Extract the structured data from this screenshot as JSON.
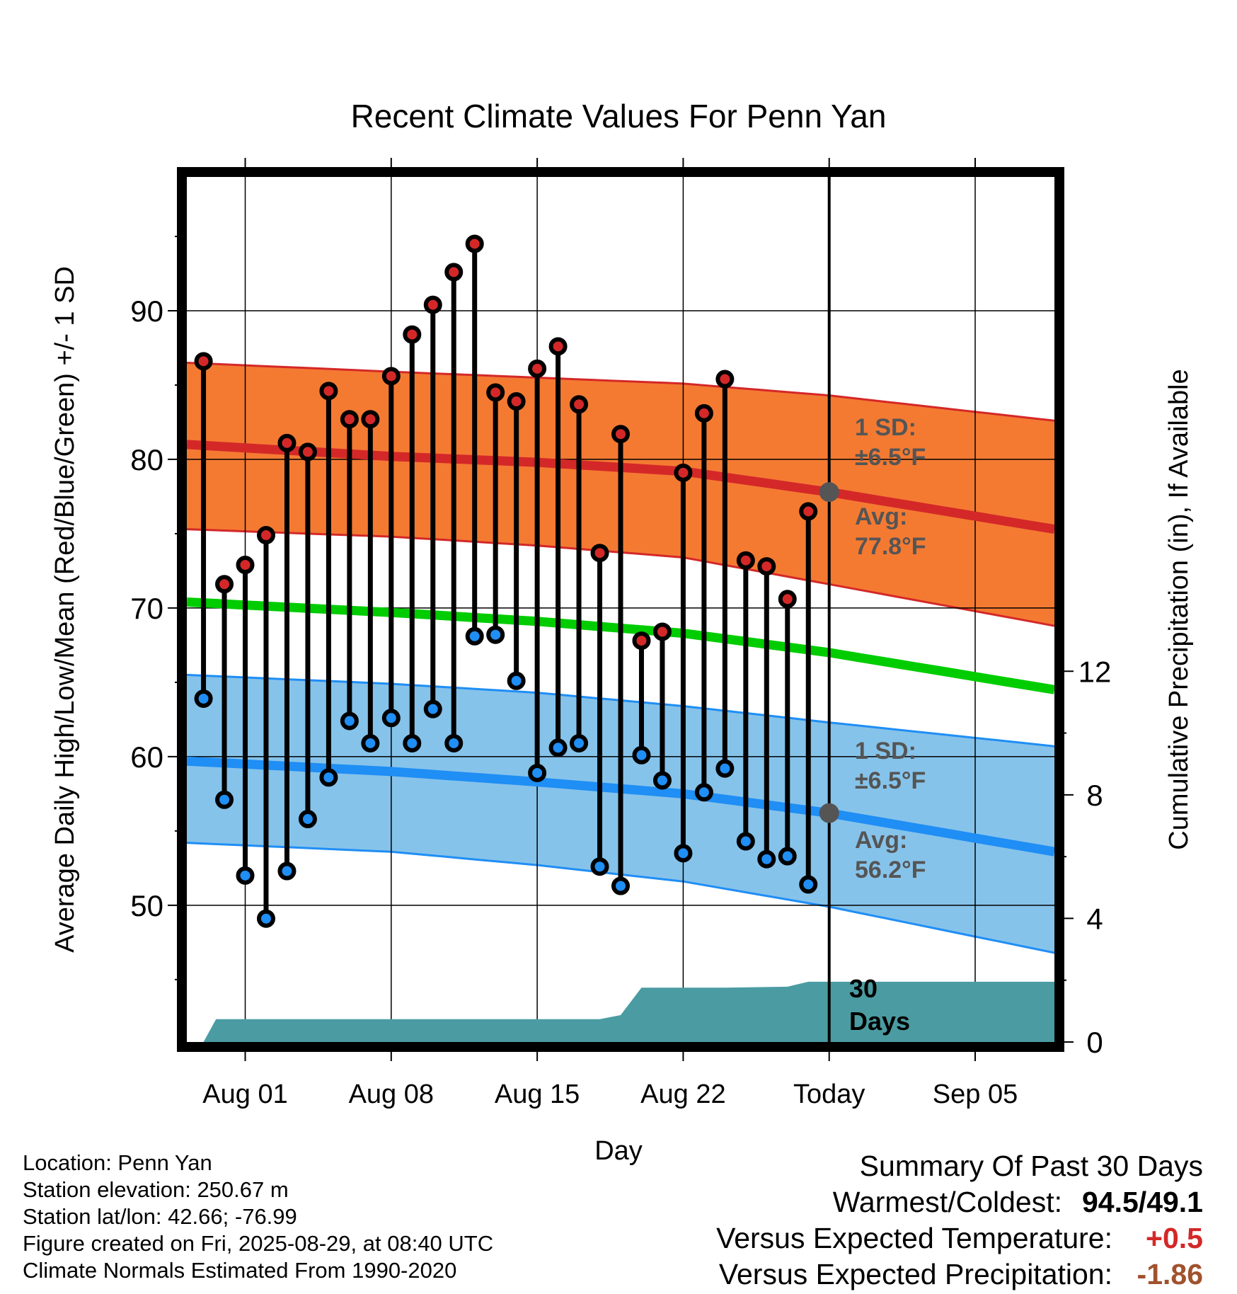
{
  "chart_data": {
    "type": "line",
    "title": "Recent Climate Values For Penn Yan",
    "xlabel": "Day",
    "ylabel": "Average Daily High/Low/Mean (Red/Blue/Green) +/- 1 SD",
    "y2label": "Cumulative Precipitation (in), If Available",
    "ylim": [
      40.8,
      99
    ],
    "y_ticks": [
      50,
      60,
      70,
      80,
      90
    ],
    "y2lim": [
      0,
      28
    ],
    "y2_ticks": [
      0,
      4,
      8,
      12
    ],
    "xlim": [
      -2.8,
      38.8
    ],
    "x_ticks": [
      {
        "day": 0,
        "label": "Aug 01"
      },
      {
        "day": 7,
        "label": "Aug 08"
      },
      {
        "day": 14,
        "label": "Aug 15"
      },
      {
        "day": 21,
        "label": "Aug 22"
      },
      {
        "day": 28,
        "label": "Today"
      },
      {
        "day": 35,
        "label": "Sep 05"
      }
    ],
    "grid": true,
    "today_day": 28,
    "series": [
      {
        "name": "Daily High",
        "x": [
          -2,
          -1,
          0,
          1,
          2,
          3,
          4,
          5,
          6,
          7,
          8,
          9,
          10,
          11,
          12,
          13,
          14,
          15,
          16,
          17,
          18,
          19,
          20,
          21,
          22,
          23,
          24,
          25,
          26,
          27
        ],
        "values": [
          86.6,
          71.6,
          72.9,
          74.9,
          81.1,
          80.5,
          84.6,
          82.7,
          82.7,
          85.6,
          88.4,
          90.4,
          92.6,
          94.5,
          84.5,
          83.9,
          86.1,
          87.6,
          83.7,
          73.7,
          81.7,
          67.8,
          68.4,
          79.1,
          83.1,
          85.4,
          73.2,
          72.8,
          70.6,
          76.5
        ]
      },
      {
        "name": "Daily Low",
        "x": [
          -2,
          -1,
          0,
          1,
          2,
          3,
          4,
          5,
          6,
          7,
          8,
          9,
          10,
          11,
          12,
          13,
          14,
          15,
          16,
          17,
          18,
          19,
          20,
          21,
          22,
          23,
          24,
          25,
          26,
          27
        ],
        "values": [
          63.9,
          57.1,
          52.0,
          49.1,
          52.3,
          55.8,
          58.6,
          62.4,
          60.9,
          62.6,
          60.9,
          63.2,
          60.9,
          68.1,
          68.2,
          65.1,
          58.9,
          60.6,
          60.9,
          52.6,
          51.3,
          60.1,
          58.4,
          53.5,
          57.6,
          59.2,
          54.3,
          53.1,
          53.3,
          51.4
        ]
      },
      {
        "name": "Normal High",
        "x": [
          -2.8,
          7,
          14,
          21,
          28,
          38.8
        ],
        "values": [
          81.0,
          80.2,
          79.8,
          79.2,
          77.8,
          75.3
        ]
      },
      {
        "name": "Normal High +1 SD",
        "x": [
          -2.8,
          7,
          14,
          21,
          28,
          38.8
        ],
        "values": [
          86.5,
          85.9,
          85.5,
          85.1,
          84.3,
          82.6
        ]
      },
      {
        "name": "Normal High -1 SD",
        "x": [
          -2.8,
          7,
          14,
          21,
          28,
          38.8
        ],
        "values": [
          75.3,
          74.8,
          74.2,
          73.4,
          71.6,
          68.8
        ]
      },
      {
        "name": "Normal Mean",
        "x": [
          -2.8,
          7,
          14,
          21,
          28,
          38.8
        ],
        "values": [
          70.4,
          69.7,
          69.1,
          68.3,
          67.0,
          64.5
        ]
      },
      {
        "name": "Normal Low",
        "x": [
          -2.8,
          7,
          14,
          21,
          28,
          38.8
        ],
        "values": [
          59.7,
          59.0,
          58.3,
          57.5,
          56.2,
          53.6
        ]
      },
      {
        "name": "Normal Low +1 SD",
        "x": [
          -2.8,
          7,
          14,
          21,
          28,
          38.8
        ],
        "values": [
          65.5,
          64.9,
          64.3,
          63.4,
          62.3,
          60.7
        ]
      },
      {
        "name": "Normal Low -1 SD",
        "x": [
          -2.8,
          7,
          14,
          21,
          28,
          38.8
        ],
        "values": [
          54.2,
          53.6,
          52.7,
          51.6,
          49.9,
          46.8
        ]
      },
      {
        "name": "Cumulative Precipitation",
        "x": [
          -2,
          -1.4,
          17,
          18,
          19,
          23,
          26,
          27,
          38.8
        ],
        "values": [
          0.0,
          0.74,
          0.74,
          0.87,
          1.76,
          1.76,
          1.79,
          1.95,
          1.95
        ]
      }
    ],
    "colors": {
      "high": "#d42828",
      "high_band": "#f47a32",
      "low": "#1f8ef5",
      "low_band": "#86c3ea",
      "mean": "#00cc00",
      "precip": "#4a9ca2",
      "today_marker": "#555555",
      "annot": "#555555"
    },
    "annotations": {
      "high_sd_line1": "1 SD:",
      "high_sd_line2": "±6.5°F",
      "high_avg_line1": "Avg:",
      "high_avg_line2": "77.8°F",
      "low_sd_line1": "1 SD:",
      "low_sd_line2": "±6.5°F",
      "low_avg_line1": "Avg:",
      "low_avg_line2": "56.2°F",
      "precip_line1": "30",
      "precip_line2": "Days"
    }
  },
  "footer_left": {
    "location": "Location: Penn Yan",
    "elevation": "Station elevation: 250.67 m",
    "latlon": "Station lat/lon: 42.66; -76.99",
    "created": "Figure created on Fri, 2025-08-29, at 08:40 UTC",
    "normals": "Climate Normals Estimated From 1990-2020"
  },
  "summary": {
    "title": "Summary Of Past 30 Days",
    "warmest_label": "Warmest/Coldest:",
    "warmest_value": "94.5/49.1",
    "temp_label": "Versus Expected Temperature:",
    "temp_value": "+0.5",
    "temp_color": "#d42828",
    "precip_label": "Versus Expected Precipitation:",
    "precip_value": "-1.86",
    "precip_color": "#a0522d"
  }
}
